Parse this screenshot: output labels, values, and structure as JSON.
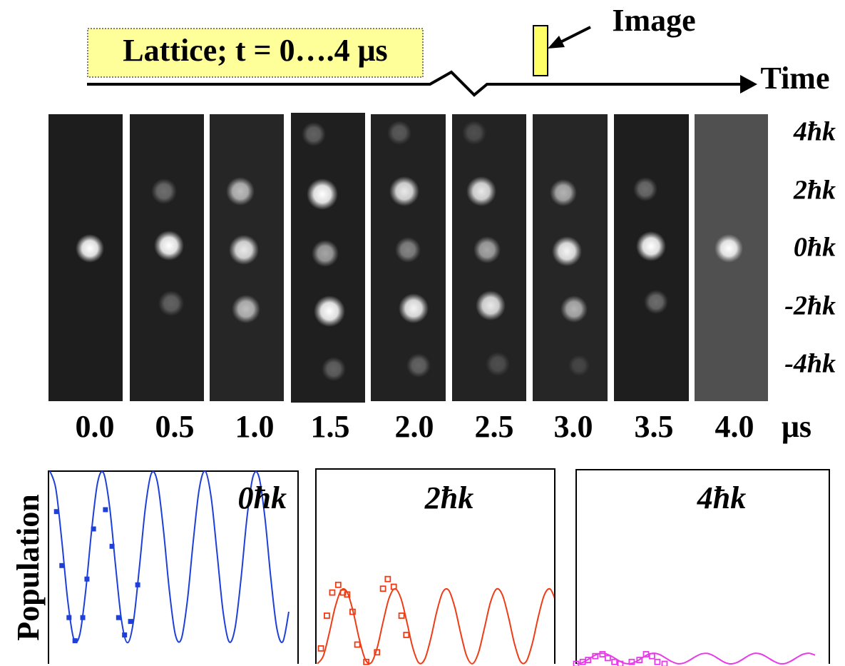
{
  "timeline": {
    "lattice_label": "Lattice; t = 0….4 μs",
    "image_label": "Image",
    "time_label": "Time"
  },
  "images": {
    "times": [
      "0.0",
      "0.5",
      "1.0",
      "1.5",
      "2.0",
      "2.5",
      "3.0",
      "3.5",
      "4.0"
    ],
    "time_unit": "μs",
    "momentum_labels": [
      "4ħk",
      "2ħk",
      "0ħk",
      "-2ħk",
      "-4ħk"
    ]
  },
  "chart_data": [
    {
      "type": "scatter",
      "title": "0ħk",
      "ylabel": "Population",
      "xlim": [
        0,
        4
      ],
      "ylim": [
        0,
        1
      ],
      "series": [
        {
          "kind": "markers",
          "marker": "filled-square",
          "color": "#1e3fd8",
          "x": [
            0.11,
            0.2,
            0.32,
            0.42,
            0.55,
            0.62,
            0.73,
            0.93,
            1.04,
            1.15,
            1.25,
            1.35,
            1.47
          ],
          "values": [
            0.79,
            0.51,
            0.24,
            0.12,
            0.24,
            0.44,
            0.7,
            0.8,
            0.61,
            0.24,
            0.15,
            0.22,
            0.41
          ]
        },
        {
          "kind": "line",
          "color": "#1e3fd8",
          "x": [
            0,
            0.1,
            0.2,
            0.3,
            0.4,
            0.5,
            0.6,
            0.7,
            0.8,
            0.9,
            1.0,
            1.1,
            1.2,
            1.3,
            1.4,
            1.5,
            1.6,
            1.7,
            1.8,
            1.9,
            2.0,
            2.1,
            2.2,
            2.3,
            2.4,
            2.5,
            2.6,
            2.7,
            2.8,
            2.9,
            3.0,
            3.1,
            3.2,
            3.3,
            3.4,
            3.5,
            3.6,
            3.7,
            3.8,
            3.9,
            4.0
          ],
          "values": [
            1.0,
            0.907,
            0.636,
            0.324,
            0.129,
            0.152,
            0.381,
            0.698,
            0.943,
            0.989,
            0.814,
            0.506,
            0.223,
            0.11,
            0.223,
            0.506,
            0.814,
            0.989,
            0.943,
            0.698,
            0.381,
            0.152,
            0.129,
            0.324,
            0.636,
            0.907,
            1.0,
            0.864,
            0.571,
            0.27,
            0.115,
            0.186,
            0.442,
            0.759,
            0.971,
            0.971,
            0.759,
            0.442,
            0.184,
            0.115,
            0.27
          ]
        }
      ]
    },
    {
      "type": "scatter",
      "title": "2ħk",
      "xlim": [
        0,
        4
      ],
      "ylim": [
        0,
        1
      ],
      "series": [
        {
          "kind": "markers",
          "marker": "open-square",
          "color": "#f03c14",
          "x": [
            0.06,
            0.16,
            0.25,
            0.35,
            0.43,
            0.5,
            0.59,
            0.67,
            0.82,
            1.0,
            1.1,
            1.18,
            1.28,
            1.41,
            1.49
          ],
          "values": [
            0.08,
            0.25,
            0.37,
            0.41,
            0.37,
            0.36,
            0.27,
            0.1,
            0.01,
            0.06,
            0.39,
            0.44,
            0.4,
            0.25,
            0.15
          ]
        },
        {
          "kind": "line",
          "color": "#f03c14",
          "x": [
            0,
            0.1,
            0.2,
            0.3,
            0.4,
            0.5,
            0.6,
            0.7,
            0.8,
            0.9,
            1.0,
            1.1,
            1.2,
            1.3,
            1.4,
            1.5,
            1.6,
            1.7,
            1.8,
            1.9,
            2.0,
            2.1,
            2.2,
            2.3,
            2.4,
            2.5,
            2.6,
            2.7,
            2.8,
            2.9,
            3.0,
            3.1,
            3.2,
            3.3,
            3.4,
            3.5,
            3.6,
            3.7,
            3.8,
            3.9,
            4.0
          ],
          "values": [
            0.001,
            0.041,
            0.16,
            0.296,
            0.382,
            0.372,
            0.271,
            0.132,
            0.025,
            0.005,
            0.081,
            0.216,
            0.34,
            0.39,
            0.34,
            0.216,
            0.082,
            0.005,
            0.025,
            0.132,
            0.271,
            0.372,
            0.382,
            0.296,
            0.16,
            0.041,
            0.001,
            0.06,
            0.188,
            0.32,
            0.388,
            0.357,
            0.244,
            0.106,
            0.013,
            0.013,
            0.106,
            0.244,
            0.357,
            0.388,
            0.32
          ]
        }
      ]
    },
    {
      "type": "scatter",
      "title": "4ħk",
      "xlim": [
        0,
        4
      ],
      "ylim": [
        0,
        1
      ],
      "series": [
        {
          "kind": "markers",
          "marker": "open-square",
          "color": "#e83ae8",
          "x": [
            0.0,
            0.11,
            0.2,
            0.32,
            0.44,
            0.53,
            0.64,
            0.74,
            0.93,
            1.06,
            1.17,
            1.27,
            1.36,
            1.48
          ],
          "values": [
            0.0,
            0.01,
            0.02,
            0.04,
            0.05,
            0.03,
            0.01,
            0.0,
            0.01,
            0.02,
            0.05,
            0.04,
            0.01,
            0.0
          ]
        },
        {
          "kind": "line",
          "color": "#e83ae8",
          "x": [
            0,
            0.1,
            0.2,
            0.3,
            0.4,
            0.5,
            0.6,
            0.7,
            0.8,
            0.9,
            1.0,
            1.1,
            1.2,
            1.3,
            1.4,
            1.5,
            1.6,
            1.7,
            1.8,
            1.9,
            2.0,
            2.1,
            2.2,
            2.3,
            2.4,
            2.5,
            2.6,
            2.7,
            2.8,
            2.9,
            3.0,
            3.1,
            3.2,
            3.3,
            3.4,
            3.5,
            3.6,
            3.7,
            3.8,
            3.9,
            4.0
          ],
          "values": [
            0.0,
            0.006,
            0.023,
            0.042,
            0.054,
            0.052,
            0.038,
            0.019,
            0.004,
            0.001,
            0.011,
            0.03,
            0.048,
            0.055,
            0.048,
            0.03,
            0.012,
            0.001,
            0.004,
            0.019,
            0.038,
            0.052,
            0.054,
            0.042,
            0.023,
            0.006,
            0.0,
            0.008,
            0.026,
            0.045,
            0.055,
            0.05,
            0.034,
            0.015,
            0.002,
            0.002,
            0.015,
            0.034,
            0.05,
            0.055,
            0.045
          ]
        }
      ]
    }
  ]
}
